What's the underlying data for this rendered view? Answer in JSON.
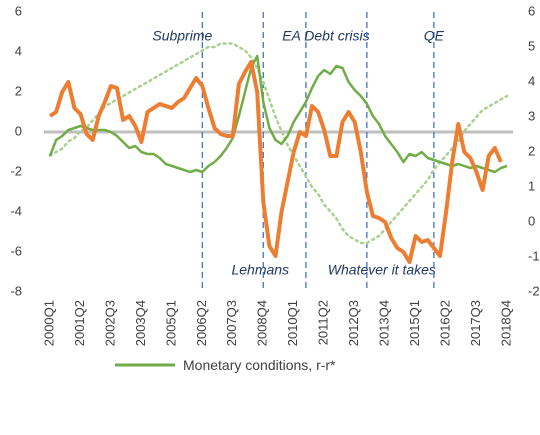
{
  "chart_data": {
    "type": "line",
    "categories": [
      "2000Q1",
      null,
      null,
      null,
      null,
      "2001Q2",
      null,
      null,
      null,
      null,
      "2002Q3",
      null,
      null,
      null,
      null,
      "2003Q4",
      null,
      null,
      null,
      null,
      "2005Q1",
      null,
      null,
      null,
      null,
      "2006Q2",
      null,
      null,
      null,
      null,
      "2007Q3",
      null,
      null,
      null,
      null,
      "2008Q4",
      null,
      null,
      null,
      null,
      "2010Q1",
      null,
      null,
      null,
      null,
      "2011Q2",
      null,
      null,
      null,
      null,
      "2012Q3",
      null,
      null,
      null,
      null,
      "2013Q4",
      null,
      null,
      null,
      null,
      "2015Q1",
      null,
      null,
      null,
      null,
      "2016Q2",
      null,
      null,
      null,
      null,
      "2017Q3",
      null,
      null,
      null,
      null,
      "2018Q4"
    ],
    "ylim": [
      -8,
      6
    ],
    "yticks": [
      6,
      4,
      2,
      0,
      -2,
      -4,
      -6,
      -8
    ],
    "y2lim": [
      -2,
      6
    ],
    "y2ticks": [
      6,
      5,
      4,
      3,
      2,
      1,
      0,
      -1,
      -2
    ],
    "grid": false,
    "series": [
      {
        "name": "Monetary conditions, r-r*",
        "color": "#70ad47",
        "style": "solid",
        "values": [
          -1.2,
          -0.4,
          -0.2,
          0.1,
          0.2,
          0.3,
          0.2,
          0.1,
          0.1,
          0.1,
          0.0,
          -0.2,
          -0.5,
          -0.8,
          -0.7,
          -1.0,
          -1.1,
          -1.1,
          -1.3,
          -1.6,
          -1.7,
          -1.8,
          -1.9,
          -2.0,
          -1.9,
          -2.0,
          -1.7,
          -1.5,
          -1.2,
          -0.8,
          -0.3,
          0.8,
          2.0,
          3.2,
          3.8,
          1.5,
          0.2,
          -0.4,
          -0.6,
          -0.2,
          0.5,
          1.0,
          1.5,
          2.2,
          2.8,
          3.1,
          2.9,
          3.3,
          3.2,
          2.5,
          2.1,
          1.8,
          1.4,
          0.8,
          0.4,
          -0.2,
          -0.6,
          -1.0,
          -1.5,
          -1.1,
          -1.2,
          -1.0,
          -1.3,
          -1.4,
          -1.5,
          -1.6,
          -1.7,
          -1.6,
          -1.7,
          -1.8,
          -1.7,
          -1.8,
          -1.9,
          -2.0,
          -1.8,
          -1.7
        ]
      },
      {
        "color": "#ed7d31",
        "style": "thick",
        "values": [
          0.8,
          1.0,
          2.0,
          2.5,
          1.2,
          0.9,
          -0.1,
          -0.4,
          0.8,
          1.5,
          2.3,
          2.2,
          0.6,
          0.8,
          0.3,
          -0.5,
          1.0,
          1.2,
          1.4,
          1.3,
          1.2,
          1.5,
          1.7,
          2.2,
          2.7,
          2.3,
          1.2,
          0.2,
          -0.1,
          -0.2,
          -0.2,
          2.4,
          3.0,
          3.5,
          2.0,
          -3.5,
          -5.7,
          -6.2,
          -4.0,
          -2.5,
          -1.0,
          0.0,
          -0.2,
          1.3,
          1.0,
          0.1,
          -1.2,
          -1.2,
          0.5,
          1.0,
          0.5,
          -1.0,
          -3.0,
          -4.2,
          -4.3,
          -4.5,
          -5.3,
          -5.8,
          -6.0,
          -6.5,
          -5.2,
          -5.5,
          -5.4,
          -5.8,
          -6.2,
          -4.0,
          -1.5,
          0.4,
          -1.0,
          -1.3,
          -2.0,
          -2.9,
          -1.2,
          -0.8,
          -1.5,
          null
        ]
      },
      {
        "color": "#a9d18e",
        "style": "dotted",
        "axis": "y2",
        "values": [
          1.9,
          2.0,
          2.1,
          2.3,
          2.4,
          2.6,
          2.7,
          2.9,
          3.1,
          3.3,
          3.4,
          3.5,
          3.6,
          3.7,
          3.8,
          3.9,
          4.0,
          4.1,
          4.2,
          4.3,
          4.4,
          4.5,
          4.6,
          4.7,
          4.8,
          4.9,
          5.0,
          5.0,
          5.1,
          5.1,
          5.1,
          5.0,
          4.9,
          4.7,
          4.4,
          4.0,
          3.5,
          3.0,
          2.6,
          2.2,
          1.9,
          1.6,
          1.3,
          1.0,
          0.8,
          0.5,
          0.3,
          0.1,
          -0.2,
          -0.4,
          -0.5,
          -0.6,
          -0.6,
          -0.5,
          -0.4,
          -0.2,
          0.0,
          0.2,
          0.4,
          0.6,
          0.8,
          1.0,
          1.2,
          1.5,
          1.7,
          1.9,
          2.1,
          2.3,
          2.6,
          2.8,
          3.0,
          3.2,
          3.3,
          3.4,
          3.5,
          3.6
        ]
      }
    ],
    "events": [
      {
        "x": "2006Q2",
        "label": "Subprime",
        "side": "top"
      },
      {
        "x": "2008Q4",
        "label": "Lehmans",
        "side": "bottom"
      },
      {
        "x": "2010Q3",
        "label": "EA Debt crisis",
        "side": "top"
      },
      {
        "x": "2013Q1",
        "label": "Whatever it takes",
        "side": "bottom"
      },
      {
        "x": "2015Q4",
        "label": "QE",
        "side": "top"
      }
    ]
  }
}
